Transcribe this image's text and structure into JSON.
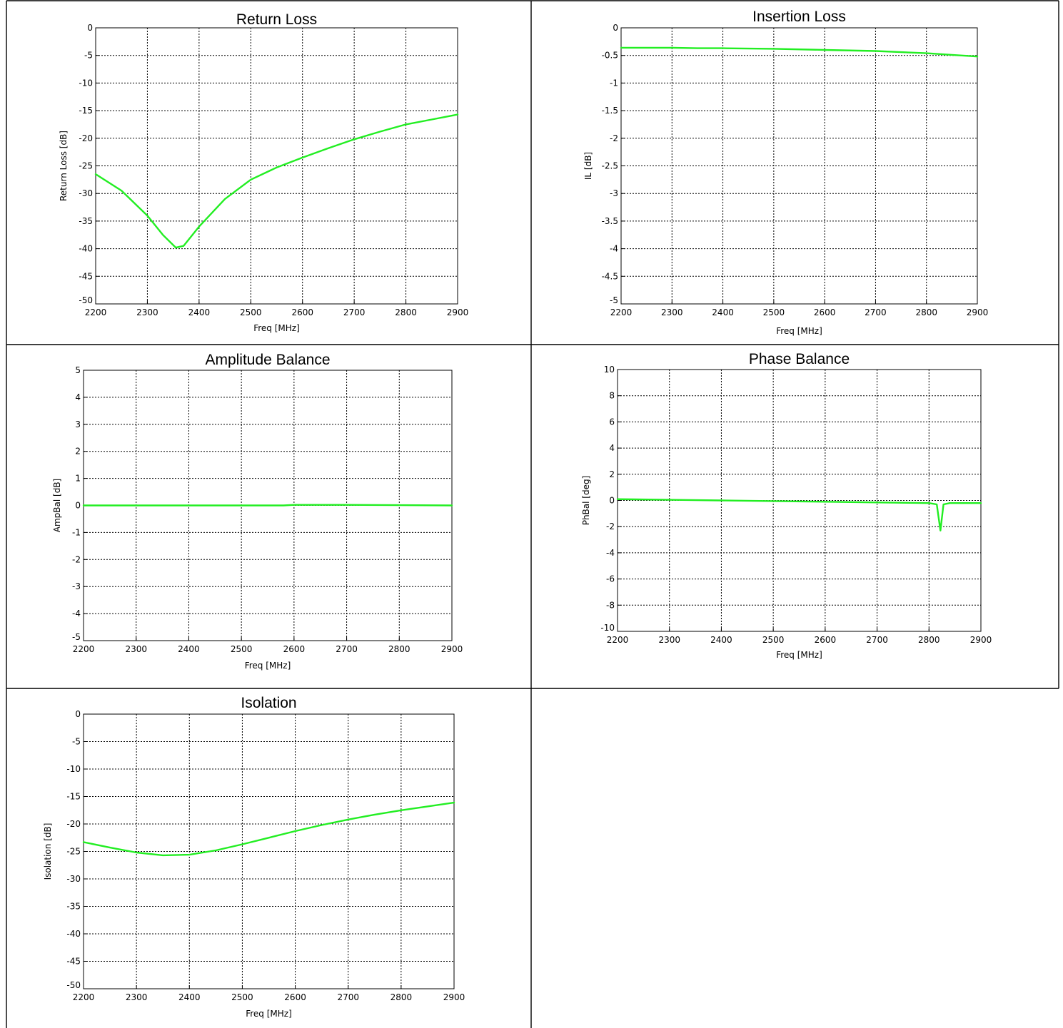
{
  "colors": {
    "trace": "#22ee22",
    "axes": "#000000",
    "background": "#ffffff"
  },
  "chart_data": [
    {
      "type": "line",
      "title": "Return Loss",
      "xlabel": "Freq [MHz]",
      "ylabel": "Return Loss [dB]",
      "xlim": [
        2200,
        2900
      ],
      "ylim": [
        -50,
        0
      ],
      "xticks": [
        2200,
        2300,
        2400,
        2500,
        2600,
        2700,
        2800,
        2900
      ],
      "yticks": [
        0,
        -5,
        -10,
        -15,
        -20,
        -25,
        -30,
        -35,
        -40,
        -45,
        -50
      ],
      "grid": true,
      "series": [
        {
          "x": [
            2200,
            2250,
            2300,
            2330,
            2355,
            2370,
            2400,
            2450,
            2500,
            2550,
            2600,
            2650,
            2700,
            2750,
            2800,
            2850,
            2900
          ],
          "y": [
            -26.5,
            -29.5,
            -34.0,
            -37.5,
            -39.8,
            -39.5,
            -36.0,
            -31.0,
            -27.5,
            -25.3,
            -23.5,
            -21.8,
            -20.2,
            -18.8,
            -17.5,
            -16.6,
            -15.7
          ]
        }
      ]
    },
    {
      "type": "line",
      "title": "Insertion Loss",
      "xlabel": "Freq [MHz]",
      "ylabel": "IL [dB]",
      "xlim": [
        2200,
        2900
      ],
      "ylim": [
        -5,
        0
      ],
      "xticks": [
        2200,
        2300,
        2400,
        2500,
        2600,
        2700,
        2800,
        2900
      ],
      "yticks": [
        0,
        -0.5,
        -1,
        -1.5,
        -2,
        -2.5,
        -3,
        -3.5,
        -4,
        -4.5,
        -5
      ],
      "grid": true,
      "series": [
        {
          "x": [
            2200,
            2300,
            2350,
            2400,
            2500,
            2600,
            2700,
            2750,
            2800,
            2850,
            2900
          ],
          "y": [
            -0.36,
            -0.36,
            -0.37,
            -0.37,
            -0.38,
            -0.4,
            -0.42,
            -0.44,
            -0.46,
            -0.49,
            -0.52
          ]
        }
      ]
    },
    {
      "type": "line",
      "title": "Amplitude Balance",
      "xlabel": "Freq [MHz]",
      "ylabel": "AmpBal [dB]",
      "xlim": [
        2200,
        2900
      ],
      "ylim": [
        -5,
        5
      ],
      "xticks": [
        2200,
        2300,
        2400,
        2500,
        2600,
        2700,
        2800,
        2900
      ],
      "yticks": [
        5,
        4,
        3,
        2,
        1,
        0,
        -1,
        -2,
        -3,
        -4,
        -5
      ],
      "grid": true,
      "series": [
        {
          "x": [
            2200,
            2400,
            2580,
            2600,
            2700,
            2800,
            2900
          ],
          "y": [
            0.0,
            0.0,
            0.0,
            0.02,
            0.02,
            0.01,
            0.0
          ]
        }
      ]
    },
    {
      "type": "line",
      "title": "Phase Balance",
      "xlabel": "Freq [MHz]",
      "ylabel": "PhBal [deg]",
      "xlim": [
        2200,
        2900
      ],
      "ylim": [
        -10,
        10
      ],
      "xticks": [
        2200,
        2300,
        2400,
        2500,
        2600,
        2700,
        2800,
        2900
      ],
      "yticks": [
        10,
        8,
        6,
        4,
        2,
        0,
        -2,
        -4,
        -6,
        -8,
        -10
      ],
      "grid": true,
      "series": [
        {
          "x": [
            2200,
            2300,
            2400,
            2500,
            2600,
            2700,
            2800,
            2815,
            2822,
            2828,
            2840,
            2900
          ],
          "y": [
            0.1,
            0.05,
            0.0,
            -0.05,
            -0.1,
            -0.15,
            -0.2,
            -0.3,
            -2.3,
            -0.3,
            -0.2,
            -0.2
          ]
        }
      ]
    },
    {
      "type": "line",
      "title": "Isolation",
      "xlabel": "Freq [MHz]",
      "ylabel": "Isolation [dB]",
      "xlim": [
        2200,
        2900
      ],
      "ylim": [
        -50,
        0
      ],
      "xticks": [
        2200,
        2300,
        2400,
        2500,
        2600,
        2700,
        2800,
        2900
      ],
      "yticks": [
        0,
        -5,
        -10,
        -15,
        -20,
        -25,
        -30,
        -35,
        -40,
        -45,
        -50
      ],
      "grid": true,
      "series": [
        {
          "x": [
            2200,
            2250,
            2300,
            2350,
            2400,
            2450,
            2500,
            2550,
            2600,
            2650,
            2700,
            2750,
            2800,
            2850,
            2900
          ],
          "y": [
            -23.3,
            -24.3,
            -25.2,
            -25.7,
            -25.6,
            -24.8,
            -23.7,
            -22.5,
            -21.3,
            -20.2,
            -19.2,
            -18.3,
            -17.5,
            -16.8,
            -16.1
          ]
        }
      ]
    }
  ]
}
